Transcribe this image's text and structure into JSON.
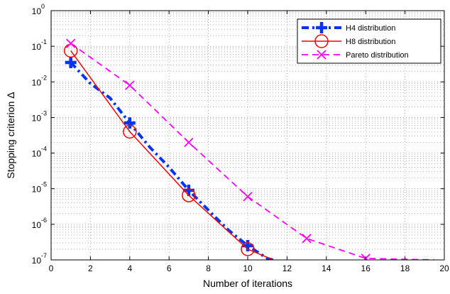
{
  "chart_data": {
    "type": "line",
    "xlabel": "Number of iterations",
    "ylabel": "Stopping criterion Δ",
    "xlim": [
      0,
      20
    ],
    "ylim": [
      1e-07,
      1
    ],
    "yscale": "log",
    "grid": true,
    "legend_position": "top-right",
    "xticks": [
      "0",
      "2",
      "4",
      "6",
      "8",
      "10",
      "12",
      "14",
      "16",
      "18",
      "20"
    ],
    "ytick_base": "10",
    "ytick_exponents": [
      "0",
      "-1",
      "-2",
      "-3",
      "-4",
      "-5",
      "-6",
      "-7"
    ],
    "series": [
      {
        "name": "H4 distribution",
        "color": "#0033ff",
        "style": "dash-dot",
        "marker": "plus",
        "x": [
          1,
          2,
          3,
          4,
          5,
          6,
          7,
          8,
          9,
          10,
          11,
          11.3
        ],
        "y": [
          0.035,
          0.009,
          0.0035,
          0.0007,
          0.00015,
          4e-05,
          9e-06,
          2.5e-06,
          7e-07,
          2.5e-07,
          1.1e-07,
          1e-07
        ],
        "marker_x": [
          1,
          4,
          7,
          10
        ],
        "marker_y": [
          0.035,
          0.0007,
          9e-06,
          2.5e-07
        ]
      },
      {
        "name": "H8 distribution",
        "color": "#ff0000",
        "style": "solid",
        "marker": "circle",
        "x": [
          1,
          4,
          7,
          10,
          11.3
        ],
        "y": [
          0.075,
          0.0004,
          6.5e-06,
          2e-07,
          1e-07
        ],
        "marker_x": [
          1,
          4,
          7,
          10
        ],
        "marker_y": [
          0.075,
          0.0004,
          6.5e-06,
          2e-07
        ]
      },
      {
        "name": "Pareto distribution",
        "color": "#ff00ff",
        "style": "dashed",
        "marker": "x",
        "x": [
          1,
          4,
          7,
          10,
          13,
          16,
          19.5
        ],
        "y": [
          0.12,
          0.008,
          0.0002,
          6e-06,
          4e-07,
          1.1e-07,
          1e-07
        ],
        "marker_x": [
          1,
          4,
          7,
          10,
          13,
          16
        ],
        "marker_y": [
          0.12,
          0.008,
          0.0002,
          6e-06,
          4e-07,
          1.1e-07
        ]
      }
    ]
  }
}
